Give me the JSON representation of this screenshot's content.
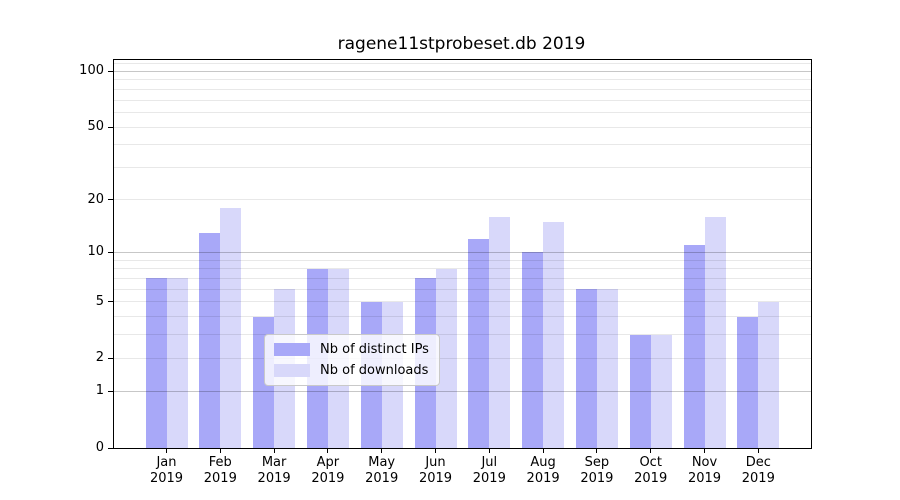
{
  "chart_data": {
    "type": "bar",
    "title": "ragene11stprobeset.db 2019",
    "categories": [
      "Jan",
      "Feb",
      "Mar",
      "Apr",
      "May",
      "Jun",
      "Jul",
      "Aug",
      "Sep",
      "Oct",
      "Nov",
      "Dec"
    ],
    "x_sublabel_year": "2019",
    "series": [
      {
        "name": "Nb of distinct IPs",
        "color": "#a8a8f8",
        "values": [
          7,
          13,
          4,
          8,
          5,
          7,
          12,
          10,
          6,
          3,
          11,
          4
        ]
      },
      {
        "name": "Nb of downloads",
        "color": "#d8d8fa",
        "values": [
          7,
          18,
          6,
          8,
          5,
          8,
          16,
          15,
          6,
          3,
          16,
          5
        ]
      }
    ],
    "y_scale": "log10(1+v)",
    "yticks": [
      0,
      1,
      2,
      5,
      10,
      20,
      50,
      100
    ],
    "ylim": [
      0,
      115
    ],
    "grid": {
      "major": [
        1,
        10,
        100
      ],
      "minor": [
        2,
        3,
        4,
        5,
        6,
        7,
        8,
        9,
        20,
        30,
        40,
        50,
        60,
        70,
        80,
        90,
        110
      ]
    },
    "legend_position": "inside-lower-center",
    "xlabel": "",
    "ylabel": ""
  }
}
